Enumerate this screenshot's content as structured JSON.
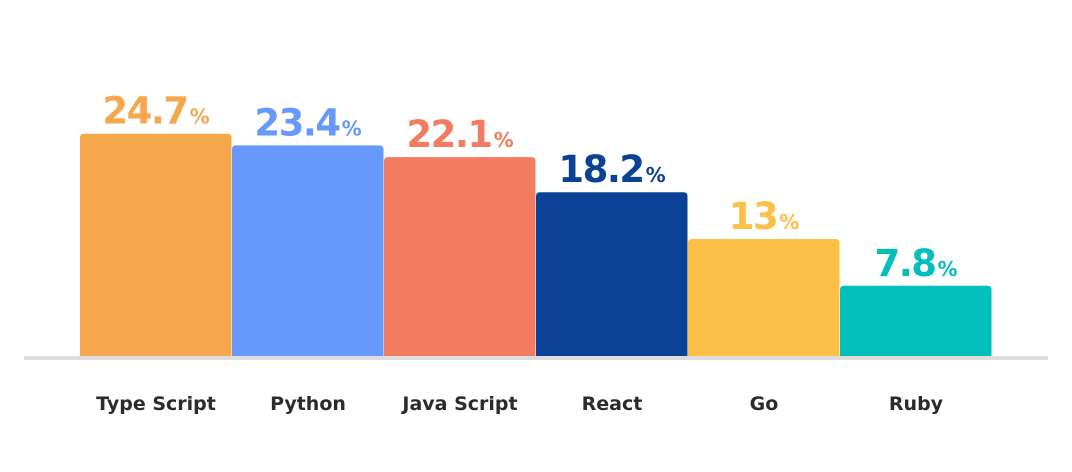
{
  "chart_data": {
    "type": "bar",
    "title": "",
    "xlabel": "",
    "ylabel": "",
    "ylim": [
      0,
      26
    ],
    "grid": false,
    "value_suffix": "%",
    "categories": [
      "Type Script",
      "Python",
      "Java Script",
      "React",
      "Go",
      "Ruby"
    ],
    "values": [
      24.7,
      23.4,
      22.1,
      18.2,
      13,
      7.8
    ],
    "value_labels": [
      "24.7",
      "23.4",
      "22.1",
      "18.2",
      "13",
      "7.8"
    ],
    "colors": [
      "#F6A64B",
      "#6699FB",
      "#F17C5F",
      "#0B4295",
      "#FCBF48",
      "#03BFBC"
    ],
    "baseline_color": "#DDDDDD",
    "label_color": "#2B2B2B"
  }
}
